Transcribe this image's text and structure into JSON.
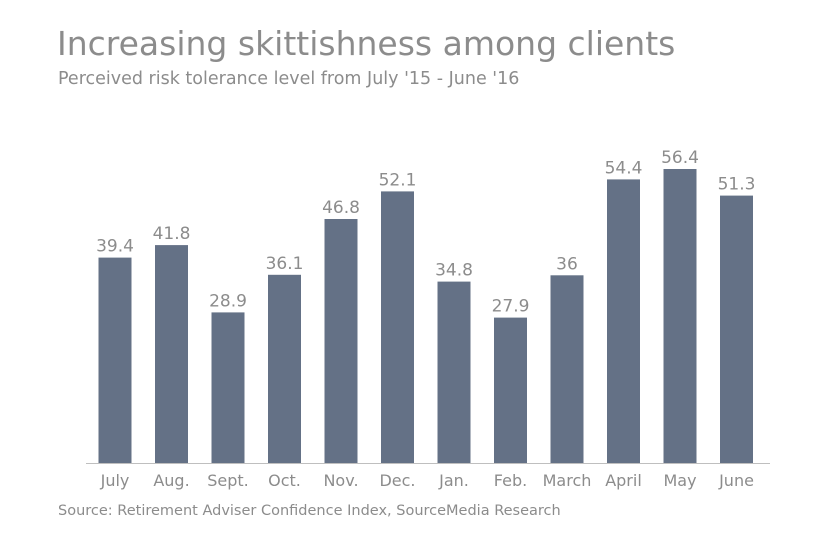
{
  "chart_data": {
    "type": "bar",
    "title": "Increasing skittishness among clients",
    "subtitle": "Perceived risk tolerance level from July '15 - June '16",
    "source": "Source: Retirement Adviser Confidence Index, SourceMedia Research",
    "categories": [
      "July",
      "Aug.",
      "Sept.",
      "Oct.",
      "Nov.",
      "Dec.",
      "Jan.",
      "Feb.",
      "March",
      "April",
      "May",
      "June"
    ],
    "values": [
      39.4,
      41.8,
      28.9,
      36.1,
      46.8,
      52.1,
      34.8,
      27.9,
      36,
      54.4,
      56.4,
      51.3
    ],
    "value_labels": [
      "39.4",
      "41.8",
      "28.9",
      "36.1",
      "46.8",
      "52.1",
      "34.8",
      "27.9",
      "36",
      "54.4",
      "56.4",
      "51.3"
    ],
    "xlabel": "",
    "ylabel": "",
    "ylim": [
      0,
      56.4
    ],
    "grid": false,
    "legend": "none",
    "colors": {
      "bar": "#647186",
      "text": "#8c8c8c",
      "axis": "#bfbfbf"
    }
  }
}
